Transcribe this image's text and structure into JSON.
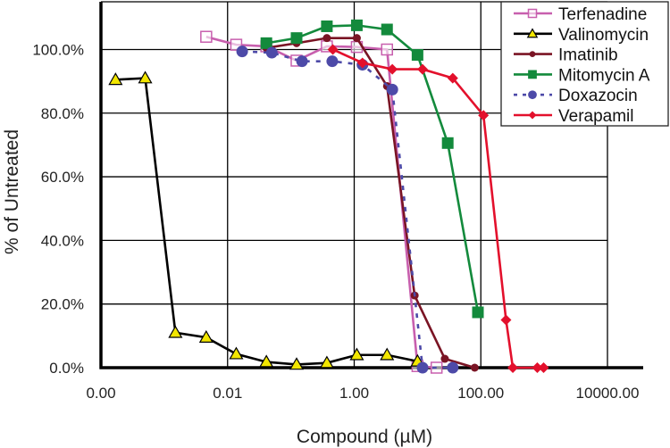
{
  "chart_data": {
    "type": "line",
    "title": "",
    "xlabel": "Compound (µM)",
    "ylabel": "% of Untreated",
    "xscale": "log",
    "xlim": [
      0.0001,
      10000
    ],
    "ylim": [
      0,
      115
    ],
    "grid": true,
    "legend_position": "top-right",
    "x_tick_values": [
      0.0001,
      0.01,
      1,
      100,
      10000
    ],
    "x_tick_labels": [
      "0.00",
      "0.01",
      "1.00",
      "100.00",
      "10000.00"
    ],
    "y_tick_values": [
      0,
      20,
      40,
      60,
      80,
      100
    ],
    "y_tick_labels": [
      "0.0%",
      "20.0%",
      "40.0%",
      "60.0%",
      "80.0%",
      "100.0%"
    ],
    "series": [
      {
        "name": "Terfenadine",
        "color": "#c85fae",
        "marker": "open-square",
        "dash": false,
        "x": [
          0.0046,
          0.0137,
          0.041,
          0.123,
          0.37,
          1.1,
          3.3,
          10,
          20
        ],
        "y": [
          104,
          101.5,
          101,
          96.5,
          101,
          100.8,
          100,
          0.5,
          0
        ]
      },
      {
        "name": "Valinomycin",
        "color": "#000000",
        "marker": "triangle",
        "marker_fill": "#f2e600",
        "dash": false,
        "x": [
          0.00017,
          0.0005,
          0.0015,
          0.0046,
          0.0137,
          0.041,
          0.123,
          0.37,
          1.1,
          3.3,
          10
        ],
        "y": [
          90.5,
          91,
          11,
          9.5,
          4.3,
          1.8,
          1,
          1.5,
          4,
          4,
          2
        ]
      },
      {
        "name": "Imatinib",
        "color": "#7a1424",
        "marker": "small-circle",
        "dash": false,
        "x": [
          0.041,
          0.123,
          0.37,
          1.1,
          3.3,
          9,
          27,
          80
        ],
        "y": [
          100.5,
          102,
          103.6,
          103.6,
          88.5,
          22.7,
          2.8,
          0
        ]
      },
      {
        "name": "Mitomycin A",
        "color": "#138a3c",
        "marker": "square",
        "dash": false,
        "x": [
          0.041,
          0.123,
          0.37,
          1.1,
          3.3,
          10,
          30,
          90
        ],
        "y": [
          102,
          103.6,
          107.3,
          107.6,
          106.3,
          98.3,
          70.6,
          17.4
        ]
      },
      {
        "name": "Doxazocin",
        "color": "#4d4aa8",
        "marker": "circle",
        "dash": true,
        "x": [
          0.017,
          0.05,
          0.15,
          0.45,
          1.35,
          4.0,
          12,
          36
        ],
        "y": [
          99.4,
          99,
          96.3,
          96.3,
          95.2,
          87.4,
          0,
          0
        ]
      },
      {
        "name": "Verapamil",
        "color": "#e3102c",
        "marker": "diamond",
        "dash": false,
        "x": [
          0.46,
          1.35,
          4,
          12,
          36,
          110,
          250,
          320,
          780,
          980
        ],
        "y": [
          100,
          95.8,
          93.8,
          93.8,
          91,
          79.3,
          15,
          0,
          0,
          0
        ]
      }
    ]
  }
}
